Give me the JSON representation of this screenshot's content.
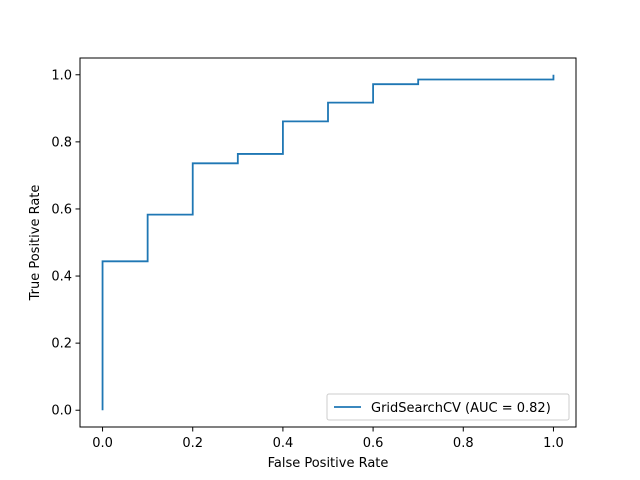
{
  "chart_data": {
    "type": "line",
    "title": "",
    "xlabel": "False Positive Rate",
    "ylabel": "True Positive Rate",
    "xlim": [
      -0.05,
      1.05
    ],
    "ylim": [
      -0.05,
      1.05
    ],
    "x_ticks": [
      0.0,
      0.2,
      0.4,
      0.6,
      0.8,
      1.0
    ],
    "x_tick_labels": [
      "0.0",
      "0.2",
      "0.4",
      "0.6",
      "0.8",
      "1.0"
    ],
    "y_ticks": [
      0.0,
      0.2,
      0.4,
      0.6,
      0.8,
      1.0
    ],
    "y_tick_labels": [
      "0.0",
      "0.2",
      "0.4",
      "0.6",
      "0.8",
      "1.0"
    ],
    "grid": false,
    "legend_position": "lower-right",
    "series": [
      {
        "name": "GridSearchCV (AUC = 0.82)",
        "color": "#1f77b4",
        "step": "post",
        "x": [
          0.0,
          0.0,
          0.1,
          0.1,
          0.2,
          0.2,
          0.3,
          0.3,
          0.4,
          0.4,
          0.5,
          0.5,
          0.6,
          0.6,
          0.7,
          0.7,
          1.0,
          1.0
        ],
        "y": [
          0.0,
          0.444,
          0.444,
          0.583,
          0.583,
          0.736,
          0.736,
          0.764,
          0.764,
          0.861,
          0.861,
          0.917,
          0.917,
          0.972,
          0.972,
          0.986,
          0.986,
          1.0
        ]
      }
    ]
  }
}
